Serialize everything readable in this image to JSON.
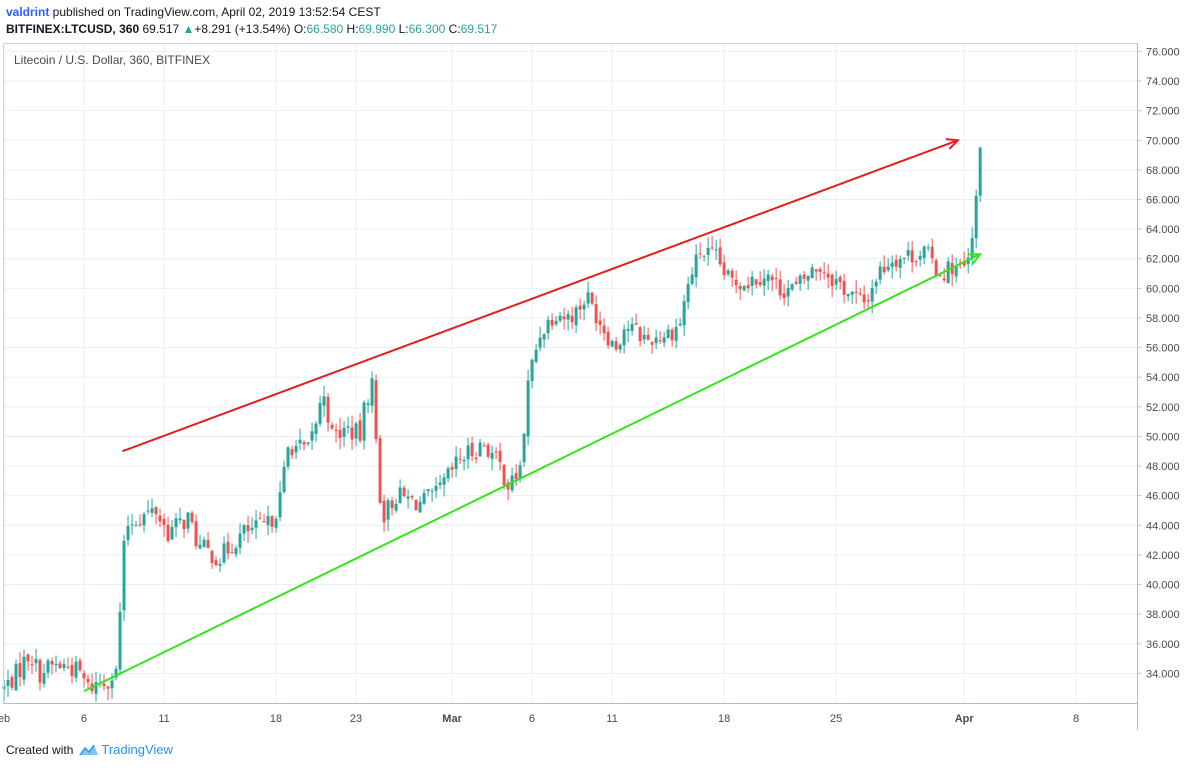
{
  "header": {
    "author": "valdrint",
    "published_text": " published on TradingView.com, April 02, 2019 13:52:54 CEST",
    "symbol": "BITFINEX:LTCUSD, 360",
    "last_price": "69.517",
    "change_arrow": "▲",
    "change": "+8.291 (+13.54%)",
    "o_label": "O:",
    "o_value": "66.580",
    "h_label": "H:",
    "h_value": "69.990",
    "l_label": "L:",
    "l_value": "66.300",
    "c_label": "C:",
    "c_value": "69.517"
  },
  "footer": {
    "created_with": "Created with",
    "brand": "TradingView"
  },
  "colors": {
    "bull": "#26a69a",
    "bear": "#ef5350",
    "upper_line": "#e21e1e",
    "lower_line": "#33e61a",
    "grid": "#e9eff5",
    "axis_text": "#4a4a4a"
  },
  "chart_data": {
    "type": "candlestick",
    "title": "Litecoin / U.S. Dollar, 360, BITFINEX",
    "ylim": [
      32.0,
      76.5
    ],
    "y_ticks": [
      "34.000",
      "36.000",
      "38.000",
      "40.000",
      "42.000",
      "44.000",
      "46.000",
      "48.000",
      "50.000",
      "52.000",
      "54.000",
      "56.000",
      "58.000",
      "60.000",
      "62.000",
      "64.000",
      "66.000",
      "68.000",
      "70.000",
      "72.000",
      "74.000",
      "76.000"
    ],
    "x_ticks": [
      {
        "label": "eb",
        "day": 1
      },
      {
        "label": "6",
        "day": 6
      },
      {
        "label": "11",
        "day": 11
      },
      {
        "label": "18",
        "day": 18
      },
      {
        "label": "23",
        "day": 23
      },
      {
        "label": "Mar",
        "day": 29,
        "bold": true
      },
      {
        "label": "6",
        "day": 34
      },
      {
        "label": "11",
        "day": 39
      },
      {
        "label": "18",
        "day": 46
      },
      {
        "label": "25",
        "day": 53
      },
      {
        "label": "Apr",
        "day": 61,
        "bold": true
      },
      {
        "label": "8",
        "day": 68
      }
    ],
    "x_range_days": [
      1,
      71.8
    ],
    "trendlines": [
      {
        "name": "upper",
        "from": [
          8.4,
          49.0
        ],
        "to": [
          60.6,
          70.0
        ],
        "arrow": true
      },
      {
        "name": "lower",
        "from": [
          6.0,
          32.8
        ],
        "to": [
          62.0,
          62.3
        ],
        "arrow": true
      }
    ],
    "price_anchors": [
      [
        1.0,
        33.0
      ],
      [
        1.8,
        34.0
      ],
      [
        2.6,
        35.4
      ],
      [
        3.2,
        34.0
      ],
      [
        4.0,
        34.5
      ],
      [
        5.0,
        34.5
      ],
      [
        5.8,
        34.0
      ],
      [
        6.2,
        33.0
      ],
      [
        7.4,
        33.6
      ],
      [
        8.0,
        34.0
      ],
      [
        8.3,
        39.0
      ],
      [
        8.6,
        44.0
      ],
      [
        9.3,
        44.5
      ],
      [
        10.5,
        45.0
      ],
      [
        11.2,
        43.5
      ],
      [
        12.5,
        44.5
      ],
      [
        13.2,
        42.5
      ],
      [
        14.5,
        41.8
      ],
      [
        15.5,
        43.0
      ],
      [
        16.0,
        43.5
      ],
      [
        17.5,
        44.0
      ],
      [
        18.2,
        45.5
      ],
      [
        18.8,
        49.5
      ],
      [
        20.0,
        49.0
      ],
      [
        21.0,
        53.0
      ],
      [
        21.5,
        50.0
      ],
      [
        22.5,
        50.5
      ],
      [
        23.3,
        50.0
      ],
      [
        23.6,
        52.5
      ],
      [
        24.0,
        53.5
      ],
      [
        24.6,
        44.5
      ],
      [
        25.5,
        46.0
      ],
      [
        27.0,
        45.5
      ],
      [
        28.0,
        46.0
      ],
      [
        29.5,
        48.5
      ],
      [
        31.0,
        49.5
      ],
      [
        32.0,
        48.0
      ],
      [
        32.6,
        46.5
      ],
      [
        33.3,
        48.0
      ],
      [
        33.8,
        54.0
      ],
      [
        34.5,
        57.0
      ],
      [
        35.5,
        58.5
      ],
      [
        36.2,
        58.0
      ],
      [
        36.8,
        58.5
      ],
      [
        37.4,
        59.5
      ],
      [
        38.4,
        57.5
      ],
      [
        39.2,
        56.0
      ],
      [
        39.8,
        57.5
      ],
      [
        40.6,
        57.0
      ],
      [
        41.2,
        56.5
      ],
      [
        42.5,
        57.0
      ],
      [
        43.2,
        57.5
      ],
      [
        43.8,
        60.5
      ],
      [
        44.5,
        62.5
      ],
      [
        45.5,
        62.0
      ],
      [
        46.3,
        60.5
      ],
      [
        47.5,
        60.5
      ],
      [
        48.5,
        61.0
      ],
      [
        49.5,
        60.0
      ],
      [
        50.5,
        60.0
      ],
      [
        51.3,
        61.0
      ],
      [
        52.0,
        61.5
      ],
      [
        53.0,
        60.5
      ],
      [
        54.0,
        59.5
      ],
      [
        54.8,
        59.0
      ],
      [
        55.6,
        61.0
      ],
      [
        56.4,
        62.0
      ],
      [
        57.5,
        62.2
      ],
      [
        58.5,
        62.5
      ],
      [
        59.5,
        61.0
      ],
      [
        60.3,
        61.5
      ],
      [
        61.1,
        61.2
      ],
      [
        61.5,
        63.0
      ],
      [
        62.0,
        69.5
      ]
    ]
  }
}
